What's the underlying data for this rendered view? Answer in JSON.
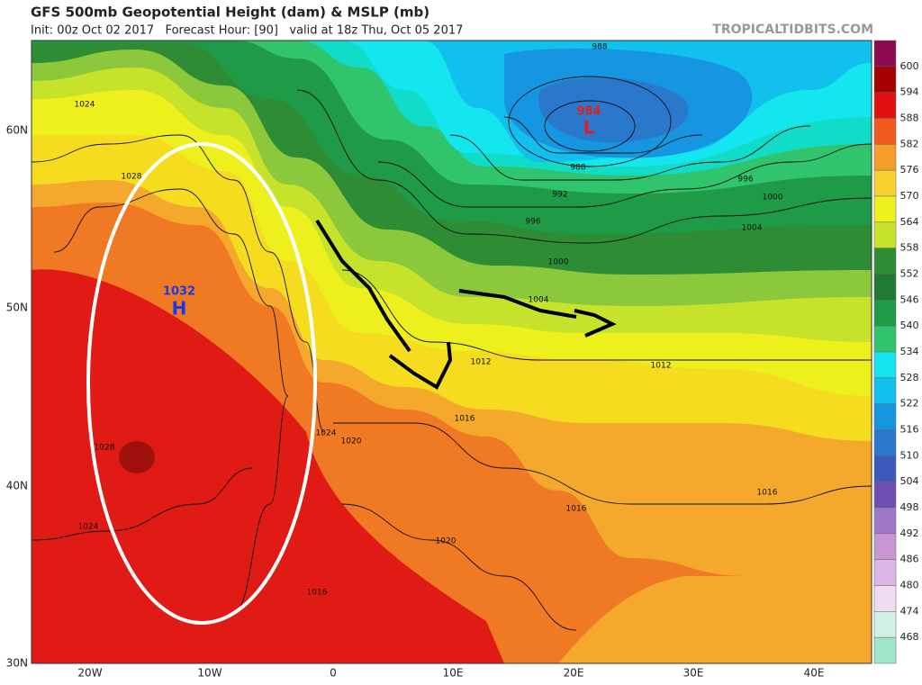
{
  "header": {
    "title": "GFS 500mb Geopotential Height (dam) & MSLP (mb)",
    "subtitle": "Init: 00z Oct 02 2017   Forecast Hour: [90]   valid at 18z Thu, Oct 05 2017",
    "site": "TROPICALTIDBITS.COM"
  },
  "map": {
    "lat_labels": [
      "60N",
      "50N",
      "40N",
      "30N"
    ],
    "lon_labels": [
      "20W",
      "10W",
      "0",
      "10E",
      "20E",
      "30E",
      "40E"
    ],
    "high": {
      "pressure": "1032",
      "letter": "H"
    },
    "low": {
      "pressure": "984",
      "letter": "L"
    },
    "isobar_labels": [
      "1024",
      "1028",
      "1028",
      "1024",
      "1024",
      "1020",
      "1016",
      "1012",
      "1012",
      "1016",
      "1016",
      "1020",
      "1016",
      "1000",
      "1004",
      "1004",
      "1000",
      "996",
      "992",
      "988",
      "988",
      "996"
    ]
  },
  "colorbar": {
    "labels": [
      "600",
      "594",
      "588",
      "582",
      "576",
      "570",
      "564",
      "558",
      "552",
      "546",
      "540",
      "534",
      "528",
      "522",
      "516",
      "510",
      "504",
      "498",
      "492",
      "486",
      "480",
      "474",
      "468"
    ]
  }
}
